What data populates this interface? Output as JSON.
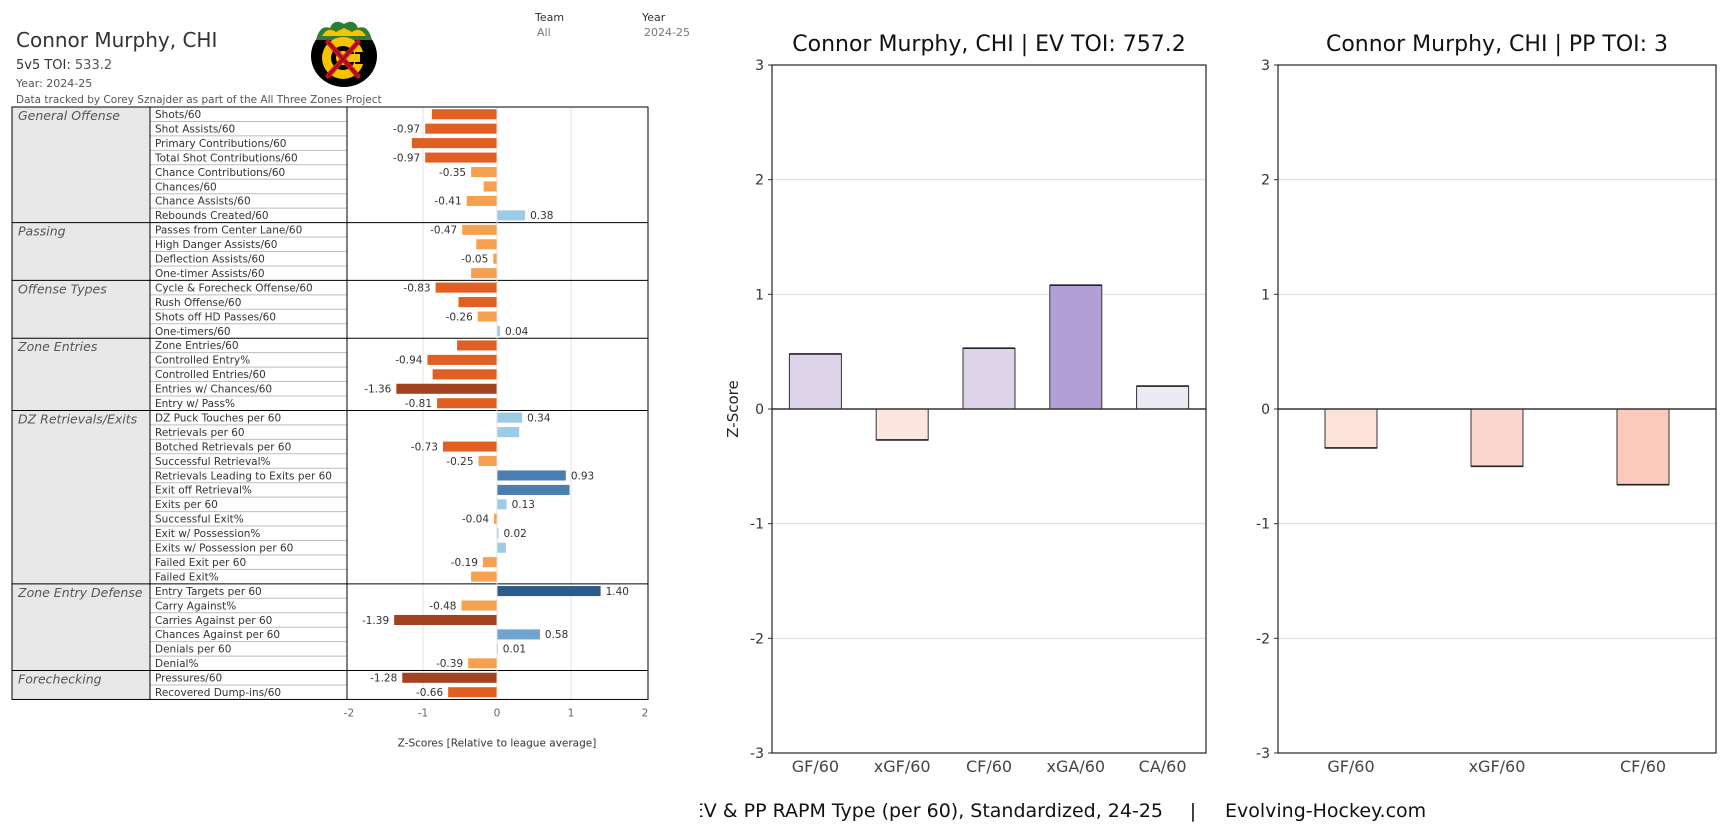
{
  "header": {
    "player": "Connor Murphy, CHI",
    "toi_label": "5v5 TOI:",
    "toi_value": "533.2",
    "year_line": "Year: 2024-25",
    "data_line": "Data tracked by Corey Sznajder as part of the All Three Zones Project",
    "filters": {
      "team_label": "Team",
      "team_value": "All",
      "year_label": "Year",
      "year_value": "2024-25"
    }
  },
  "chart_data": [
    {
      "type": "bar",
      "orientation": "horizontal",
      "xlabel": "Z-Scores [Relative to league average]",
      "xlim": [
        -2,
        2
      ],
      "xticks": [
        "-2",
        "-1",
        "0",
        "1",
        "2"
      ],
      "groups": [
        {
          "name": "General Offense",
          "metrics": [
            {
              "label": "Shots/60",
              "value": -0.88,
              "value_label": ""
            },
            {
              "label": "Shot Assists/60",
              "value": -0.97,
              "value_label": "-0.97"
            },
            {
              "label": "Primary Contributions/60",
              "value": -1.15,
              "value_label": ""
            },
            {
              "label": "Total Shot Contributions/60",
              "value": -0.97,
              "value_label": "-0.97"
            },
            {
              "label": "Chance Contributions/60",
              "value": -0.35,
              "value_label": "-0.35"
            },
            {
              "label": "Chances/60",
              "value": -0.18,
              "value_label": ""
            },
            {
              "label": "Chance Assists/60",
              "value": -0.41,
              "value_label": "-0.41"
            },
            {
              "label": "Rebounds Created/60",
              "value": 0.38,
              "value_label": "0.38"
            }
          ]
        },
        {
          "name": "Passing",
          "metrics": [
            {
              "label": "Passes from Center Lane/60",
              "value": -0.47,
              "value_label": "-0.47"
            },
            {
              "label": "High Danger Assists/60",
              "value": -0.28,
              "value_label": ""
            },
            {
              "label": "Deflection Assists/60",
              "value": -0.05,
              "value_label": "-0.05"
            },
            {
              "label": "One-timer Assists/60",
              "value": -0.35,
              "value_label": ""
            }
          ]
        },
        {
          "name": "Offense Types",
          "metrics": [
            {
              "label": "Cycle & Forecheck Offense/60",
              "value": -0.83,
              "value_label": "-0.83"
            },
            {
              "label": "Rush Offense/60",
              "value": -0.52,
              "value_label": ""
            },
            {
              "label": "Shots off HD Passes/60",
              "value": -0.26,
              "value_label": "-0.26"
            },
            {
              "label": "One-timers/60",
              "value": 0.04,
              "value_label": "0.04"
            }
          ]
        },
        {
          "name": "Zone Entries",
          "metrics": [
            {
              "label": "Zone Entries/60",
              "value": -0.54,
              "value_label": ""
            },
            {
              "label": "Controlled Entry%",
              "value": -0.94,
              "value_label": "-0.94"
            },
            {
              "label": "Controlled Entries/60",
              "value": -0.87,
              "value_label": ""
            },
            {
              "label": "Entries w/ Chances/60",
              "value": -1.36,
              "value_label": "-1.36"
            },
            {
              "label": "Entry w/ Pass%",
              "value": -0.81,
              "value_label": "-0.81"
            }
          ]
        },
        {
          "name": "DZ Retrievals/Exits",
          "metrics": [
            {
              "label": "DZ Puck Touches per 60",
              "value": 0.34,
              "value_label": "0.34"
            },
            {
              "label": "Retrievals per 60",
              "value": 0.3,
              "value_label": ""
            },
            {
              "label": "Botched Retrievals per 60",
              "value": -0.73,
              "value_label": "-0.73"
            },
            {
              "label": "Successful Retrieval%",
              "value": -0.25,
              "value_label": "-0.25"
            },
            {
              "label": "Retrievals Leading to Exits per 60",
              "value": 0.93,
              "value_label": "0.93"
            },
            {
              "label": "Exit off Retrieval%",
              "value": 0.98,
              "value_label": ""
            },
            {
              "label": "Exits per 60",
              "value": 0.13,
              "value_label": "0.13"
            },
            {
              "label": "Successful Exit%",
              "value": -0.04,
              "value_label": "-0.04"
            },
            {
              "label": "Exit w/ Possession%",
              "value": 0.02,
              "value_label": "0.02"
            },
            {
              "label": "Exits w/ Possession per 60",
              "value": 0.12,
              "value_label": ""
            },
            {
              "label": "Failed Exit per 60",
              "value": -0.19,
              "value_label": "-0.19"
            },
            {
              "label": "Failed Exit%",
              "value": -0.35,
              "value_label": ""
            }
          ]
        },
        {
          "name": "Zone Entry Defense",
          "metrics": [
            {
              "label": "Entry Targets per 60",
              "value": 1.4,
              "value_label": "1.40"
            },
            {
              "label": "Carry Against%",
              "value": -0.48,
              "value_label": "-0.48"
            },
            {
              "label": "Carries Against per 60",
              "value": -1.39,
              "value_label": "-1.39"
            },
            {
              "label": "Chances Against per 60",
              "value": 0.58,
              "value_label": "0.58"
            },
            {
              "label": "Denials per 60",
              "value": 0.01,
              "value_label": "0.01"
            },
            {
              "label": "Denial%",
              "value": -0.39,
              "value_label": "-0.39"
            }
          ]
        },
        {
          "name": "Forechecking",
          "metrics": [
            {
              "label": "Pressures/60",
              "value": -1.28,
              "value_label": "-1.28"
            },
            {
              "label": "Recovered Dump-ins/60",
              "value": -0.66,
              "value_label": "-0.66"
            }
          ]
        }
      ]
    },
    {
      "type": "bar",
      "title": "Connor Murphy, CHI  |  EV TOI: 757.2",
      "ylabel": "Z-Score",
      "ylim": [
        -3,
        3
      ],
      "yticks": [
        "3",
        "2",
        "1",
        "0",
        "-1",
        "-2",
        "-3"
      ],
      "categories": [
        "GF/60",
        "xGF/60",
        "CF/60",
        "xGA/60",
        "CA/60"
      ],
      "values": [
        0.48,
        -0.27,
        0.53,
        1.08,
        0.2
      ],
      "colors": [
        "#ddd4ea",
        "#fde6e0",
        "#ddd4ea",
        "#b39fd6",
        "#eeeaf5"
      ]
    },
    {
      "type": "bar",
      "title": "Connor Murphy, CHI  |  PP TOI: 3",
      "ylim": [
        -3,
        3
      ],
      "yticks": [
        "3",
        "2",
        "1",
        "0",
        "-1",
        "-2",
        "-3"
      ],
      "categories": [
        "GF/60",
        "xGF/60",
        "CF/60"
      ],
      "values": [
        -0.34,
        -0.5,
        -0.66
      ],
      "colors": [
        "#fde2db",
        "#fcd6cc",
        "#fcc9bd"
      ]
    }
  ],
  "footer": {
    "left": "EV & PP RAPM Type (per 60), Standardized, 24-25",
    "separator": "|",
    "right": "Evolving-Hockey.com"
  },
  "colors": {
    "neg_strong": "#a3421f",
    "neg_mid": "#e15f21",
    "neg_light": "#f5a14f",
    "pos_light": "#9ccbe6",
    "pos_mid": "#6ea4cd",
    "pos_strong": "#4a7eb0",
    "pos_darkest": "#2c5c8c",
    "team_red": "#ce1126",
    "team_gold": "#f6c300"
  },
  "logo": {
    "icon": "chicago-blackhawks-logo-icon"
  }
}
